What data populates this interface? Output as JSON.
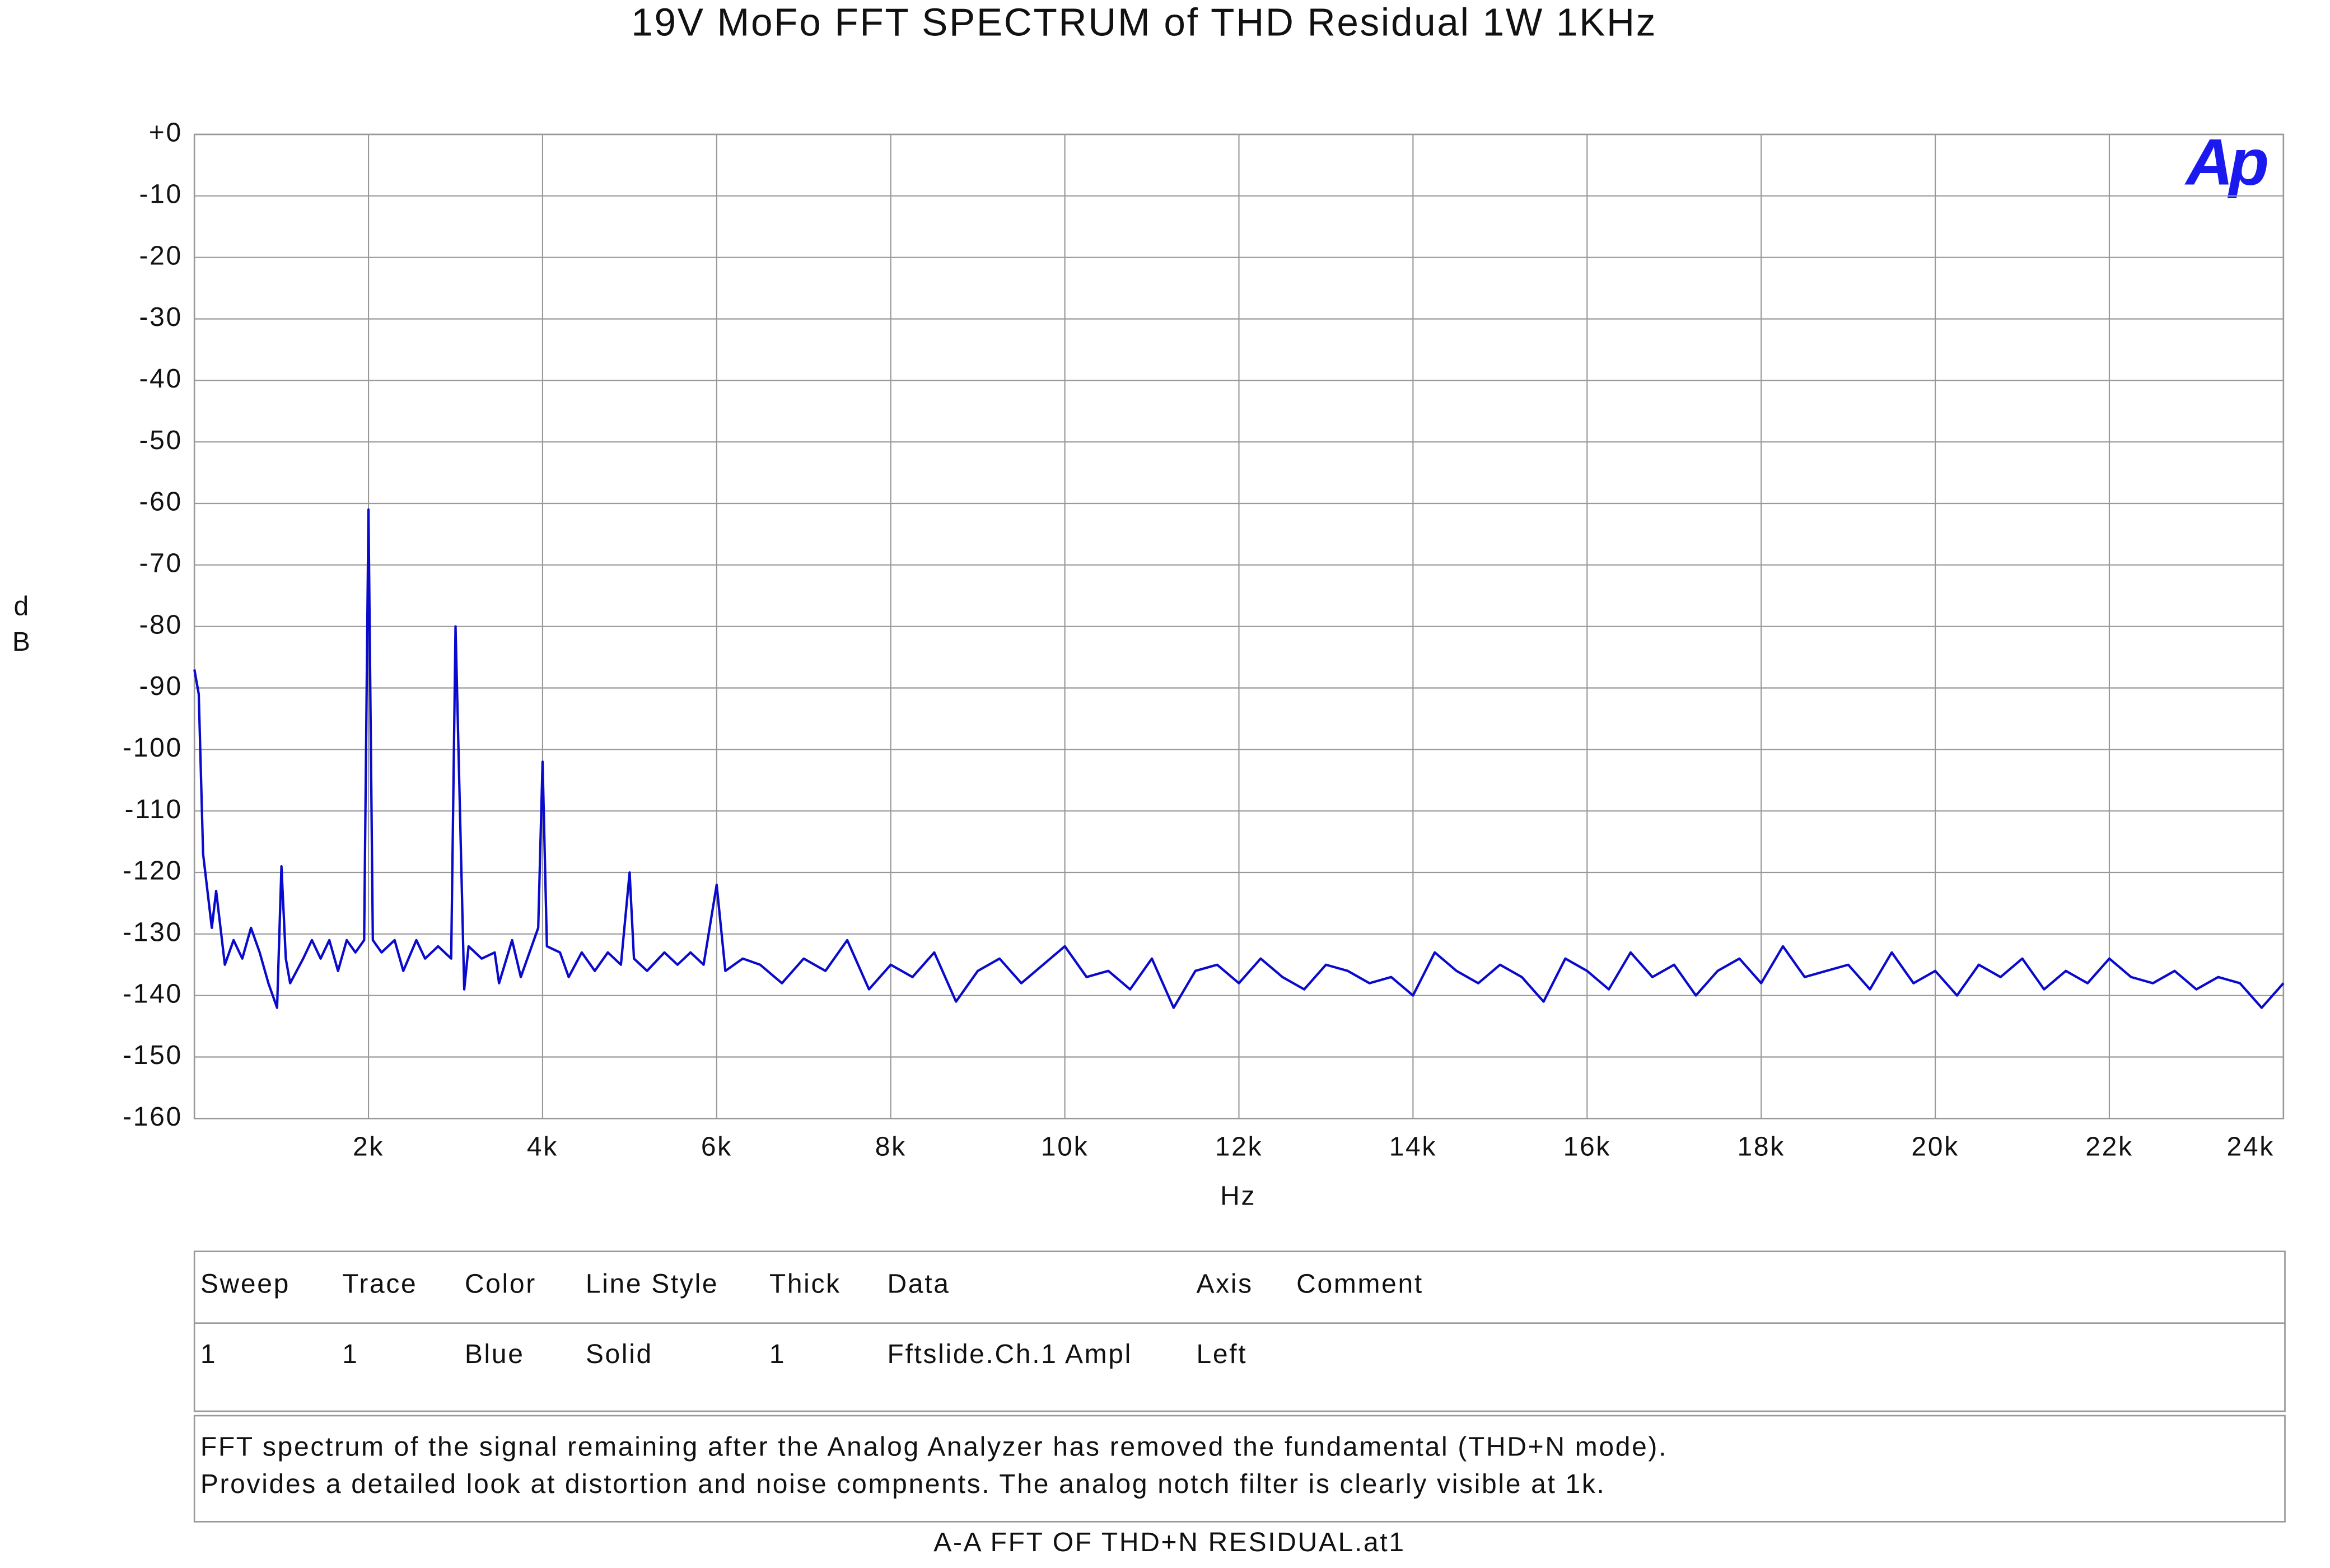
{
  "chart_data": {
    "type": "line",
    "title": "19V MoFo FFT SPECTRUM of THD Residual 1W 1KHz",
    "x_label": "Hz",
    "y_label": "dB",
    "logo": "Ap",
    "xlim": [
      0,
      24000
    ],
    "xticks": [
      {
        "value": 2000,
        "label": "2k"
      },
      {
        "value": 4000,
        "label": "4k"
      },
      {
        "value": 6000,
        "label": "6k"
      },
      {
        "value": 8000,
        "label": "8k"
      },
      {
        "value": 10000,
        "label": "10k"
      },
      {
        "value": 12000,
        "label": "12k"
      },
      {
        "value": 14000,
        "label": "14k"
      },
      {
        "value": 16000,
        "label": "16k"
      },
      {
        "value": 18000,
        "label": "18k"
      },
      {
        "value": 20000,
        "label": "20k"
      },
      {
        "value": 22000,
        "label": "22k"
      },
      {
        "value": 24000,
        "label": "24k"
      }
    ],
    "ylim": [
      -160,
      0
    ],
    "yticks": [
      {
        "value": 0,
        "label": "+0"
      },
      -10,
      -20,
      -30,
      -40,
      -50,
      -60,
      -70,
      -80,
      -90,
      -100,
      -110,
      -120,
      -130,
      -140,
      -150,
      -160
    ],
    "grid": true,
    "color": "#0a0acc",
    "x": [
      0,
      50,
      100,
      200,
      250,
      350,
      450,
      550,
      650,
      750,
      850,
      950,
      1000,
      1050,
      1100,
      1250,
      1350,
      1450,
      1550,
      1650,
      1750,
      1850,
      1950,
      2000,
      2050,
      2150,
      2300,
      2400,
      2550,
      2650,
      2800,
      2950,
      3000,
      3100,
      3150,
      3300,
      3450,
      3500,
      3650,
      3750,
      3850,
      3950,
      4000,
      4050,
      4200,
      4300,
      4450,
      4600,
      4750,
      4900,
      5000,
      5050,
      5200,
      5400,
      5550,
      5700,
      5850,
      6000,
      6100,
      6300,
      6500,
      6750,
      7000,
      7250,
      7500,
      7750,
      8000,
      8250,
      8500,
      8750,
      9000,
      9250,
      9500,
      9750,
      10000,
      10250,
      10500,
      10750,
      11000,
      11250,
      11500,
      11750,
      12000,
      12250,
      12500,
      12750,
      13000,
      13250,
      13500,
      13750,
      14000,
      14250,
      14500,
      14750,
      15000,
      15250,
      15500,
      15750,
      16000,
      16250,
      16500,
      16750,
      17000,
      17250,
      17500,
      17750,
      18000,
      18250,
      18500,
      18750,
      19000,
      19250,
      19500,
      19750,
      20000,
      20250,
      20500,
      20750,
      21000,
      21250,
      21500,
      21750,
      22000,
      22250,
      22500,
      22750,
      23000,
      23250,
      23500,
      23750,
      24000
    ],
    "values": [
      -87,
      -91,
      -117,
      -129,
      -123,
      -135,
      -131,
      -134,
      -129,
      -133,
      -138,
      -142,
      -119,
      -134,
      -138,
      -134,
      -131,
      -134,
      -131,
      -136,
      -131,
      -133,
      -131,
      -61,
      -131,
      -133,
      -131,
      -136,
      -131,
      -134,
      -132,
      -134,
      -80,
      -139,
      -132,
      -134,
      -133,
      -138,
      -131,
      -137,
      -133,
      -129,
      -102,
      -132,
      -133,
      -137,
      -133,
      -136,
      -133,
      -135,
      -120,
      -134,
      -136,
      -133,
      -135,
      -133,
      -135,
      -122,
      -136,
      -134,
      -135,
      -138,
      -134,
      -136,
      -131,
      -139,
      -135,
      -137,
      -133,
      -141,
      -136,
      -134,
      -138,
      -135,
      -132,
      -137,
      -136,
      -139,
      -134,
      -142,
      -136,
      -135,
      -138,
      -134,
      -137,
      -139,
      -135,
      -136,
      -138,
      -137,
      -140,
      -133,
      -136,
      -138,
      -135,
      -137,
      -141,
      -134,
      -136,
      -139,
      -133,
      -137,
      -135,
      -140,
      -136,
      -134,
      -138,
      -132,
      -137,
      -136,
      -135,
      -139,
      -133,
      -138,
      -136,
      -140,
      -135,
      -137,
      -134,
      -139,
      -136,
      -138,
      -134,
      -137,
      -138,
      -136,
      -139,
      -137,
      -138,
      -142,
      -138
    ]
  },
  "trace_table": {
    "header": [
      "Sweep",
      "Trace",
      "Color",
      "Line Style",
      "Thick",
      "Data",
      "Axis",
      "Comment"
    ],
    "rows": [
      [
        "1",
        "1",
        "Blue",
        "Solid",
        "1",
        "Fftslide.Ch.1 Ampl",
        "Left"
      ]
    ]
  },
  "notes": [
    "FFT spectrum of the signal remaining after the Analog  Analyzer has removed the fundamental (THD+N mode).",
    "Provides a detailed look at distortion and noise compnents.  The analog notch filter is clearly visible at 1k."
  ],
  "file_name": "A-A FFT OF THD+N RESIDUAL.at1"
}
